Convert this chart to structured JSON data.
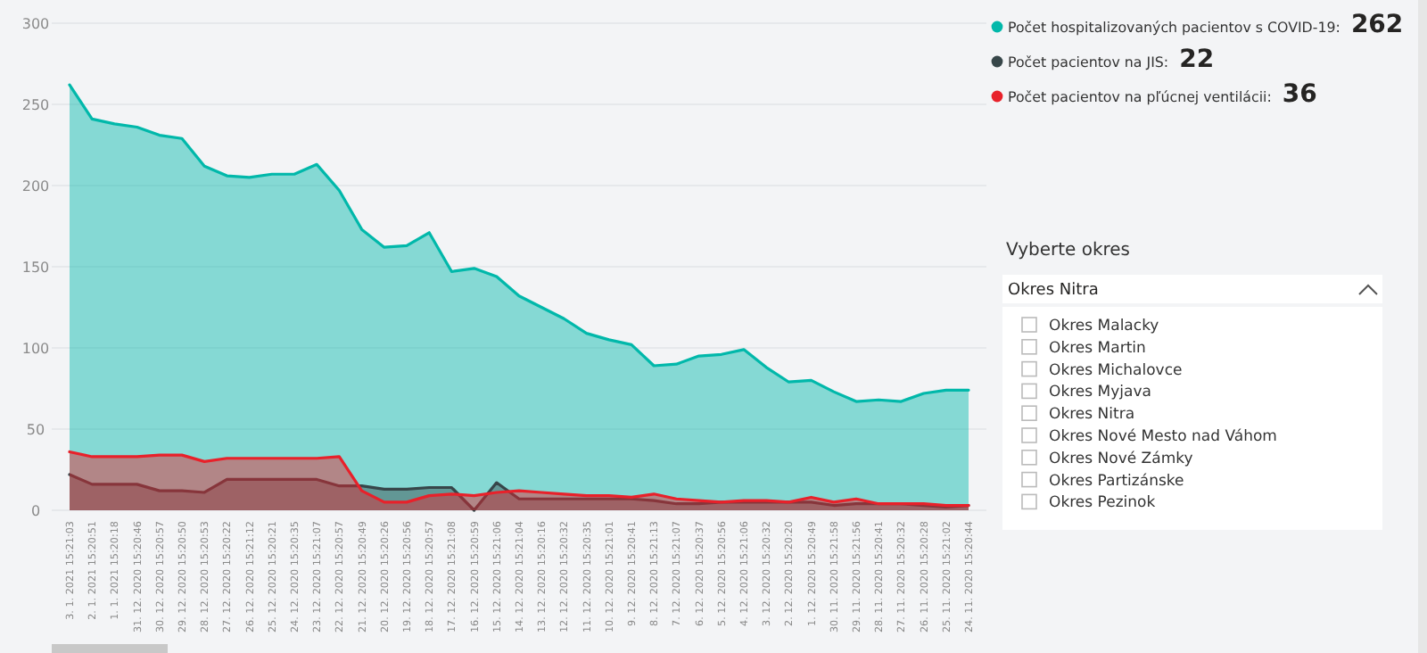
{
  "chart_data": [
    {
      "type": "area",
      "categories": [
        "3. 1. 2021 15:21:03",
        "2. 1. 2021 15:20:51",
        "1. 1. 2021 15:20:18",
        "31. 12. 2020 15:20:46",
        "30. 12. 2020 15:20:57",
        "29. 12. 2020 15:20:50",
        "28. 12. 2020 15:20:53",
        "27. 12. 2020 15:20:22",
        "26. 12. 2020 15:21:12",
        "25. 12. 2020 15:20:21",
        "24. 12. 2020 15:20:35",
        "23. 12. 2020 15:21:07",
        "22. 12. 2020 15:20:57",
        "21. 12. 2020 15:20:49",
        "20. 12. 2020 15:20:26",
        "19. 12. 2020 15:20:56",
        "18. 12. 2020 15:20:57",
        "17. 12. 2020 15:21:08",
        "16. 12. 2020 15:20:59",
        "15. 12. 2020 15:21:06",
        "14. 12. 2020 15:21:04",
        "13. 12. 2020 15:20:16",
        "12. 12. 2020 15:20:32",
        "11. 12. 2020 15:20:35",
        "10. 12. 2020 15:21:01",
        "9. 12. 2020 15:20:41",
        "8. 12. 2020 15:21:13",
        "7. 12. 2020 15:21:07",
        "6. 12. 2020 15:20:37",
        "5. 12. 2020 15:20:56",
        "4. 12. 2020 15:21:06",
        "3. 12. 2020 15:20:32",
        "2. 12. 2020 15:20:20",
        "1. 12. 2020 15:20:49",
        "30. 11. 2020 15:21:58",
        "29. 11. 2020 15:21:56",
        "28. 11. 2020 15:20:41",
        "27. 11. 2020 15:20:32",
        "26. 11. 2020 15:20:28",
        "25. 11. 2020 15:21:02",
        "24. 11. 2020 15:20:44"
      ],
      "series": [
        {
          "name": "Počet hospitalizovaných pacientov s COVID-19:",
          "color": "#01b8aa",
          "values": [
            262,
            241,
            238,
            236,
            231,
            229,
            212,
            206,
            205,
            207,
            207,
            213,
            197,
            173,
            162,
            163,
            171,
            147,
            149,
            144,
            132,
            125,
            118,
            109,
            105,
            102,
            89,
            90,
            95,
            96,
            99,
            88,
            79,
            80,
            73,
            67,
            68,
            67,
            72,
            74,
            74
          ]
        },
        {
          "name": "Počet pacientov na JIS:",
          "color": "#374649",
          "values": [
            22,
            16,
            16,
            16,
            12,
            12,
            11,
            19,
            19,
            19,
            19,
            19,
            15,
            15,
            13,
            13,
            14,
            14,
            0,
            17,
            7,
            7,
            7,
            7,
            7,
            7,
            6,
            4,
            4,
            5,
            5,
            5,
            5,
            5,
            3,
            4,
            4,
            4,
            3,
            2,
            3
          ]
        },
        {
          "name": "Počet pacientov na pľúcnej ventilácii:",
          "color": "#e8212a",
          "values": [
            36,
            33,
            33,
            33,
            34,
            34,
            30,
            32,
            32,
            32,
            32,
            32,
            33,
            12,
            5,
            5,
            9,
            10,
            9,
            11,
            12,
            11,
            10,
            9,
            9,
            8,
            10,
            7,
            6,
            5,
            6,
            6,
            5,
            8,
            5,
            7,
            4,
            4,
            4,
            3,
            3
          ]
        }
      ],
      "ylim": [
        0,
        300
      ],
      "yticks": [
        0,
        50,
        100,
        150,
        200,
        250,
        300
      ],
      "grid": "y",
      "legend": "top right",
      "annotations": [
        "262",
        "22",
        "36"
      ]
    },
    {
      "type": "other",
      "title": "Vyberte okres",
      "annotations": [
        "Okres Nitra",
        "Okres Malacky",
        "Okres Martin",
        "Okres Michalovce",
        "Okres Myjava",
        "Okres Nitra",
        "Okres Nové Mesto nad Váhom",
        "Okres Nové Zámky",
        "Okres Partizánske",
        "Okres Pezinok"
      ]
    }
  ]
}
